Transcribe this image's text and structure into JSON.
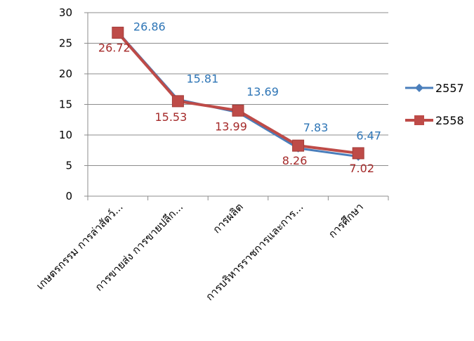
{
  "chart_data": {
    "type": "line",
    "categories": [
      "เกษตรกรรม การล่าสัตว์...",
      "การขายส่ง การขายปลีก...",
      "การผลิต",
      "การบริหารราชการและการ...",
      "การศึกษา"
    ],
    "series": [
      {
        "name": "2557",
        "values": [
          26.86,
          15.81,
          13.69,
          7.83,
          6.47
        ],
        "color": "#4a7ebb",
        "label_color": "#2e75b6",
        "marker": "diamond"
      },
      {
        "name": "2558",
        "values": [
          26.72,
          15.53,
          13.99,
          8.26,
          7.02
        ],
        "color": "#be4b48",
        "label_color": "#a52a2a",
        "marker": "square"
      }
    ],
    "y_ticks": [
      "0",
      "5",
      "10",
      "15",
      "20",
      "25",
      "30"
    ],
    "ylim": [
      0,
      30
    ],
    "grid": true,
    "legend": "right",
    "title": "",
    "xlabel": "",
    "ylabel": ""
  }
}
